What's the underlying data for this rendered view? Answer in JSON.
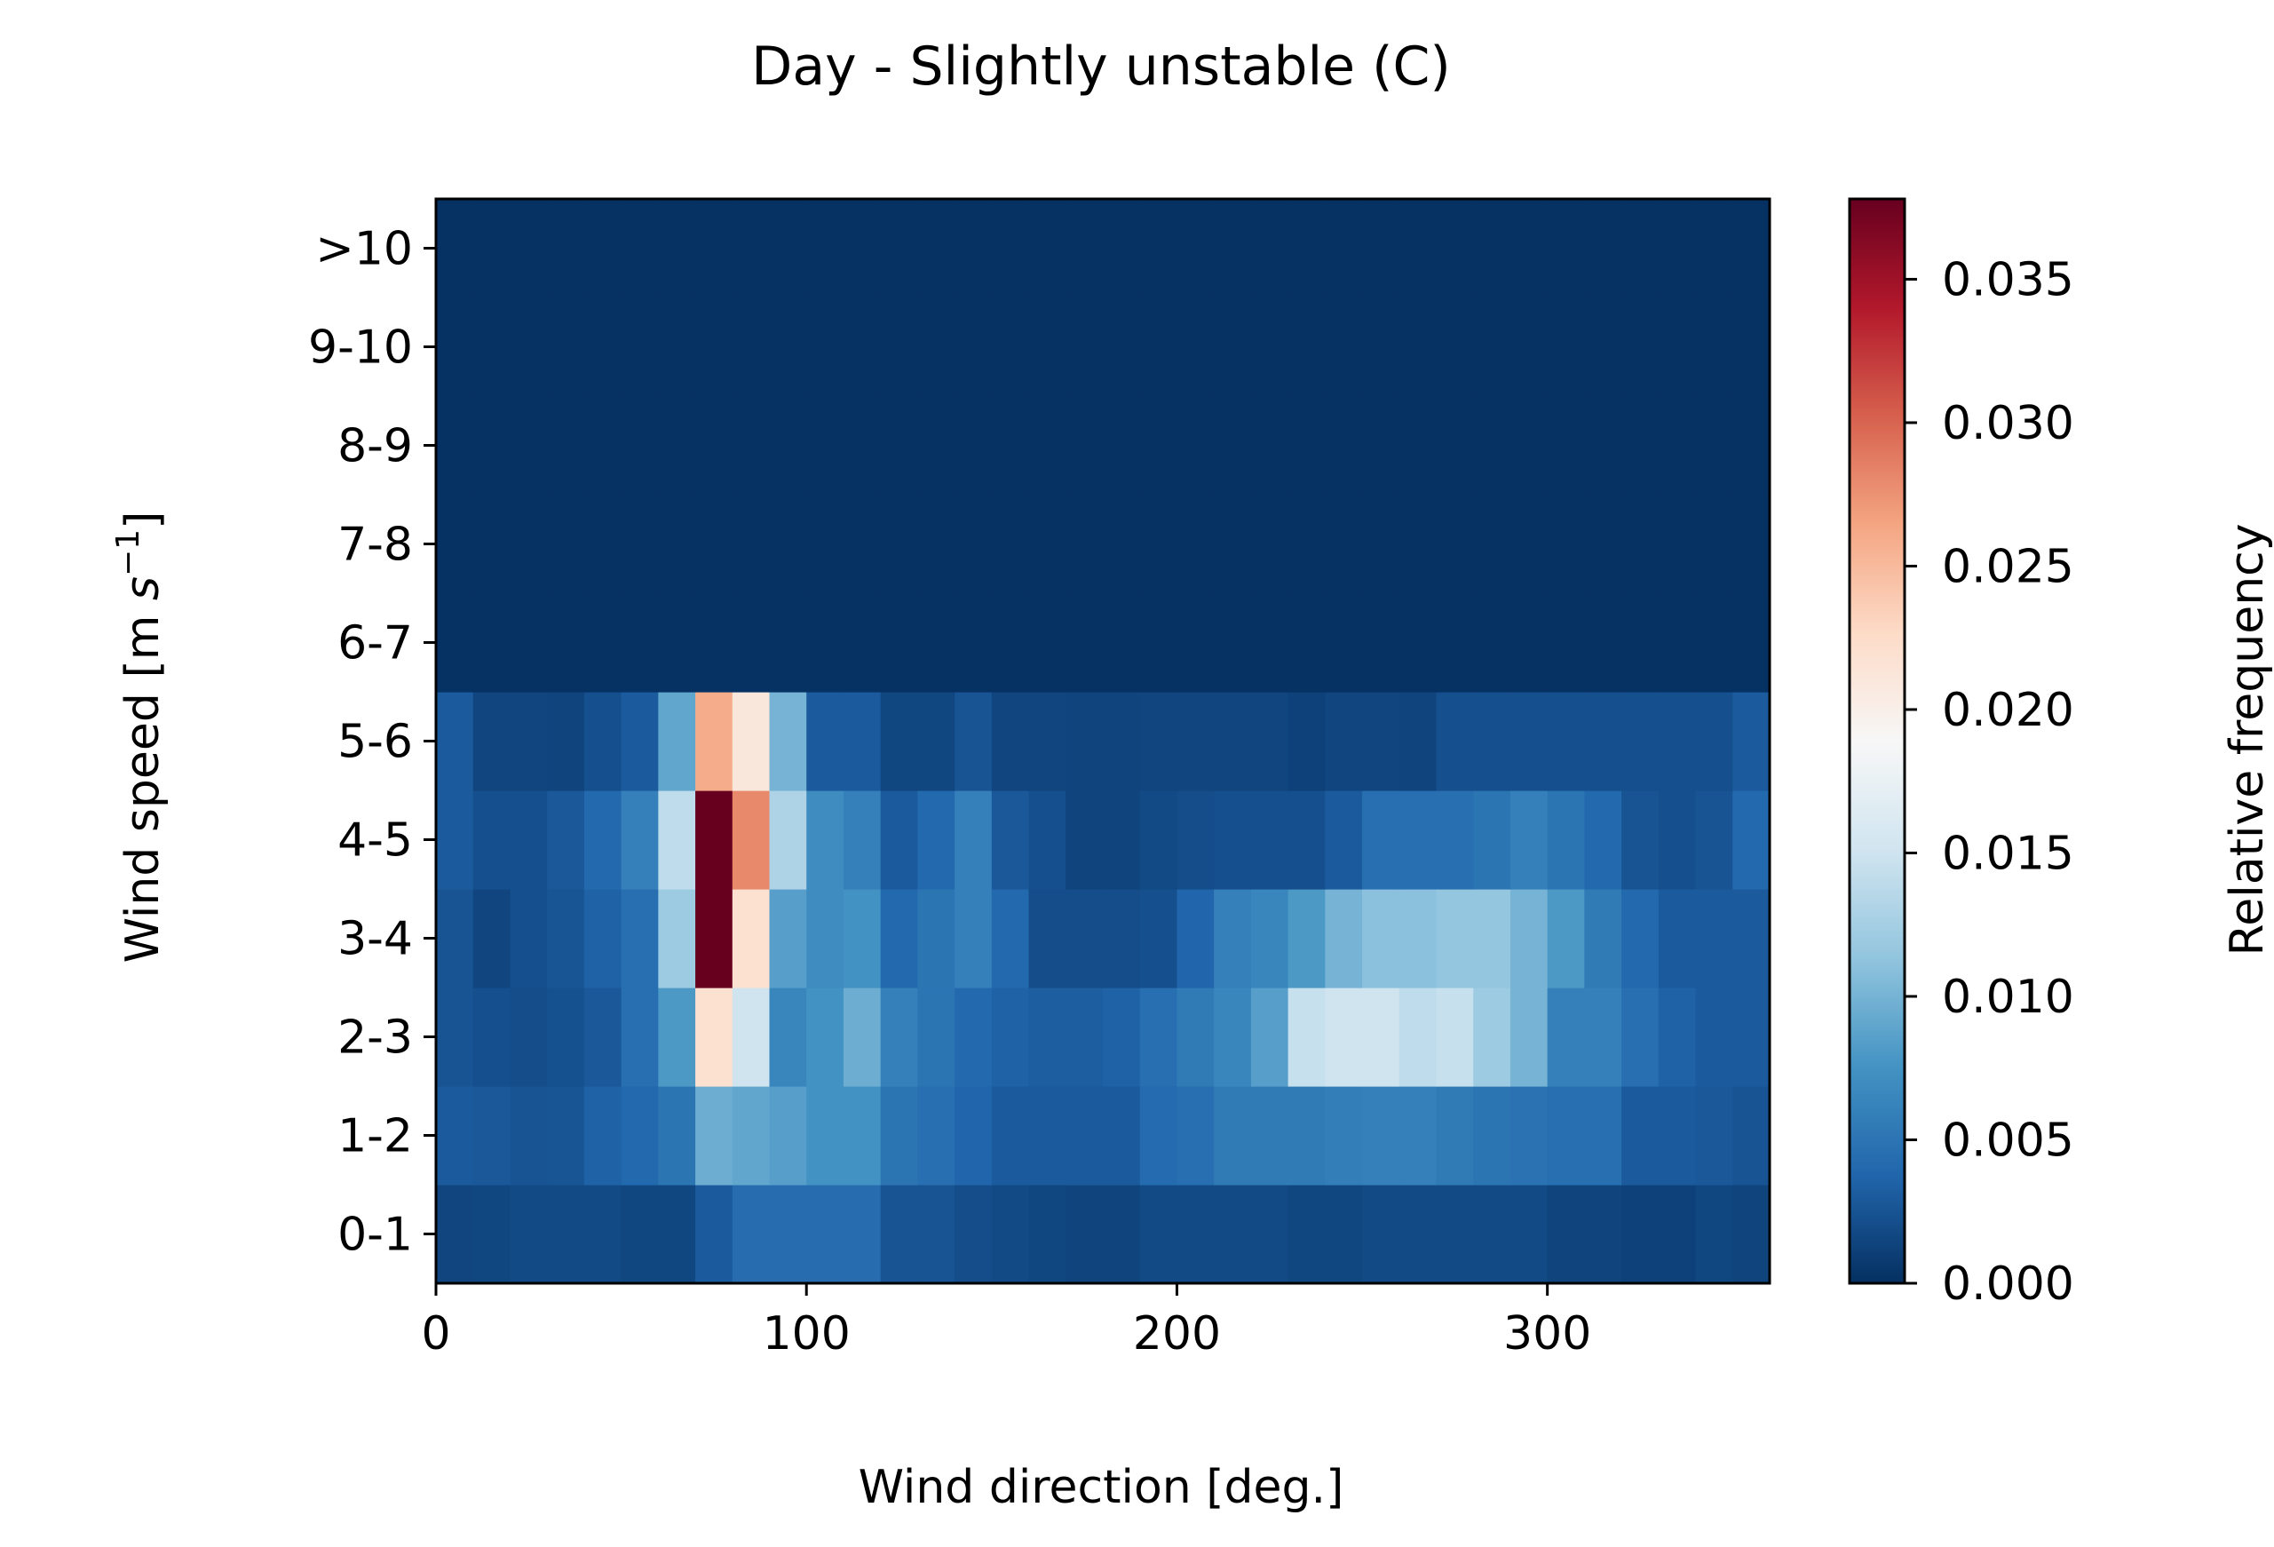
{
  "chart_data": {
    "type": "heatmap",
    "title": "Day - Slightly unstable (C)",
    "xlabel": "Wind direction [deg.]",
    "ylabel": "Wind speed [m s$^{-1}$]",
    "ylabel_parts": {
      "main": "Wind speed [m ",
      "italic": "s",
      "sup": "−1",
      "close": "]"
    },
    "xlim": [
      0,
      360
    ],
    "x_ticks": [
      0,
      100,
      200,
      300
    ],
    "x_tick_labels": [
      "0",
      "100",
      "200",
      "300"
    ],
    "x_bin_width": 10,
    "y_categories": [
      "0-1",
      "1-2",
      "2-3",
      "3-4",
      "4-5",
      "5-6",
      "6-7",
      "7-8",
      "8-9",
      "9-10",
      ">10"
    ],
    "colorbar": {
      "label": "Relative frequency",
      "range": [
        0.0,
        0.0378
      ],
      "ticks": [
        0.0,
        0.005,
        0.01,
        0.015,
        0.02,
        0.025,
        0.03,
        0.035
      ],
      "tick_labels": [
        "0.000",
        "0.005",
        "0.010",
        "0.015",
        "0.020",
        "0.025",
        "0.030",
        "0.035"
      ],
      "colormap": "RdBu_r",
      "colors": [
        "#053061",
        "#2166ac",
        "#4393c3",
        "#92c5de",
        "#d1e5f0",
        "#f7f7f7",
        "#fddbc7",
        "#f4a582",
        "#d6604d",
        "#b2182b",
        "#67001f"
      ]
    },
    "values": [
      [
        0.0015,
        0.0016,
        0.0018,
        0.0018,
        0.0018,
        0.0016,
        0.0016,
        0.003,
        0.0043,
        0.0043,
        0.0043,
        0.0043,
        0.0025,
        0.0025,
        0.002,
        0.0018,
        0.0016,
        0.0014,
        0.0014,
        0.0018,
        0.0018,
        0.0018,
        0.0018,
        0.0016,
        0.0016,
        0.0018,
        0.0018,
        0.0018,
        0.0018,
        0.0018,
        0.0014,
        0.0014,
        0.0012,
        0.0012,
        0.0016,
        0.0014
      ],
      [
        0.003,
        0.0028,
        0.0025,
        0.0026,
        0.0035,
        0.004,
        0.005,
        0.0095,
        0.009,
        0.0085,
        0.0075,
        0.0075,
        0.005,
        0.0045,
        0.0038,
        0.003,
        0.003,
        0.003,
        0.003,
        0.0042,
        0.0045,
        0.0055,
        0.0055,
        0.0055,
        0.0058,
        0.006,
        0.006,
        0.0055,
        0.005,
        0.0048,
        0.0045,
        0.0045,
        0.003,
        0.003,
        0.0028,
        0.0025
      ],
      [
        0.0025,
        0.0022,
        0.002,
        0.0023,
        0.0028,
        0.0045,
        0.008,
        0.022,
        0.015,
        0.0065,
        0.0075,
        0.0095,
        0.006,
        0.005,
        0.004,
        0.0035,
        0.0032,
        0.0032,
        0.0035,
        0.0045,
        0.0055,
        0.0065,
        0.0085,
        0.0145,
        0.015,
        0.015,
        0.014,
        0.0145,
        0.012,
        0.01,
        0.006,
        0.006,
        0.0045,
        0.0035,
        0.003,
        0.003
      ],
      [
        0.0025,
        0.0015,
        0.0022,
        0.0026,
        0.0035,
        0.0045,
        0.012,
        0.0378,
        0.022,
        0.0085,
        0.007,
        0.0075,
        0.004,
        0.005,
        0.006,
        0.004,
        0.002,
        0.002,
        0.002,
        0.0022,
        0.0038,
        0.006,
        0.0065,
        0.008,
        0.01,
        0.011,
        0.011,
        0.0115,
        0.0115,
        0.01,
        0.008,
        0.0055,
        0.004,
        0.003,
        0.003,
        0.003
      ],
      [
        0.003,
        0.0022,
        0.0022,
        0.0028,
        0.004,
        0.006,
        0.014,
        0.0378,
        0.028,
        0.013,
        0.007,
        0.006,
        0.003,
        0.004,
        0.006,
        0.0028,
        0.0022,
        0.0014,
        0.0014,
        0.0018,
        0.002,
        0.0022,
        0.0022,
        0.0022,
        0.003,
        0.0045,
        0.0045,
        0.0045,
        0.005,
        0.006,
        0.005,
        0.004,
        0.0025,
        0.0022,
        0.0025,
        0.004
      ],
      [
        0.003,
        0.0015,
        0.0015,
        0.0014,
        0.0022,
        0.003,
        0.009,
        0.026,
        0.021,
        0.01,
        0.003,
        0.003,
        0.0016,
        0.0016,
        0.0025,
        0.0015,
        0.0015,
        0.0014,
        0.0014,
        0.0015,
        0.0015,
        0.0015,
        0.0015,
        0.0012,
        0.0015,
        0.0015,
        0.0014,
        0.0022,
        0.0022,
        0.0022,
        0.0022,
        0.0022,
        0.0022,
        0.0022,
        0.0022,
        0.003
      ],
      [
        0.0001,
        0.0001,
        0.0001,
        0.0001,
        0.0001,
        0.0001,
        0.0001,
        0.0001,
        0.0001,
        0.0001,
        0.0001,
        0.0001,
        0.0001,
        0.0001,
        0.0001,
        0.0001,
        0.0001,
        0.0001,
        0.0001,
        0.0001,
        0.0001,
        0.0001,
        0.0001,
        0.0001,
        0.0001,
        0.0001,
        0.0001,
        0.0001,
        0.0001,
        0.0001,
        0.0001,
        0.0001,
        0.0001,
        0.0001,
        0.0001,
        0.0001
      ],
      [
        0.0001,
        0.0001,
        0.0001,
        0.0001,
        0.0001,
        0.0001,
        0.0001,
        0.0001,
        0.0001,
        0.0001,
        0.0001,
        0.0001,
        0.0001,
        0.0001,
        0.0001,
        0.0001,
        0.0001,
        0.0001,
        0.0001,
        0.0001,
        0.0001,
        0.0001,
        0.0001,
        0.0001,
        0.0001,
        0.0001,
        0.0001,
        0.0001,
        0.0001,
        0.0001,
        0.0001,
        0.0001,
        0.0001,
        0.0001,
        0.0001,
        0.0001
      ],
      [
        0.0001,
        0.0001,
        0.0001,
        0.0001,
        0.0001,
        0.0001,
        0.0001,
        0.0001,
        0.0001,
        0.0001,
        0.0001,
        0.0001,
        0.0001,
        0.0001,
        0.0001,
        0.0001,
        0.0001,
        0.0001,
        0.0001,
        0.0001,
        0.0001,
        0.0001,
        0.0001,
        0.0001,
        0.0001,
        0.0001,
        0.0001,
        0.0001,
        0.0001,
        0.0001,
        0.0001,
        0.0001,
        0.0001,
        0.0001,
        0.0001,
        0.0001
      ],
      [
        0.0001,
        0.0001,
        0.0001,
        0.0001,
        0.0001,
        0.0001,
        0.0001,
        0.0001,
        0.0001,
        0.0001,
        0.0001,
        0.0001,
        0.0001,
        0.0001,
        0.0001,
        0.0001,
        0.0001,
        0.0001,
        0.0001,
        0.0001,
        0.0001,
        0.0001,
        0.0001,
        0.0001,
        0.0001,
        0.0001,
        0.0001,
        0.0001,
        0.0001,
        0.0001,
        0.0001,
        0.0001,
        0.0001,
        0.0001,
        0.0001,
        0.0001
      ],
      [
        0.0001,
        0.0001,
        0.0001,
        0.0001,
        0.0001,
        0.0001,
        0.0001,
        0.0001,
        0.0001,
        0.0001,
        0.0001,
        0.0001,
        0.0001,
        0.0001,
        0.0001,
        0.0001,
        0.0001,
        0.0001,
        0.0001,
        0.0001,
        0.0001,
        0.0001,
        0.0001,
        0.0001,
        0.0001,
        0.0001,
        0.0001,
        0.0001,
        0.0001,
        0.0001,
        0.0001,
        0.0001,
        0.0001,
        0.0001,
        0.0001,
        0.0001
      ]
    ]
  }
}
